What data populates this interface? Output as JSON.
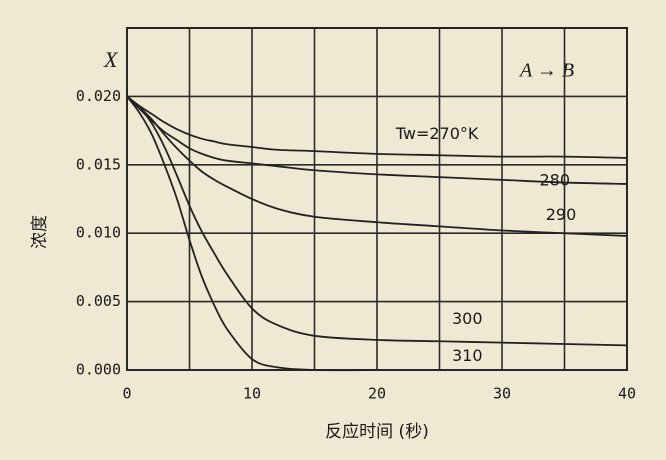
{
  "chart_data": {
    "type": "line",
    "y_axis_symbol": "X",
    "annotation": "A → B",
    "ylabel": "浓度",
    "xlabel": "反应时间 (秒)",
    "x": [
      0,
      1,
      2,
      3,
      4,
      5,
      6,
      7,
      8,
      10,
      12,
      15,
      20,
      25,
      30,
      35,
      40
    ],
    "series": [
      {
        "name": "Tw=270°K",
        "color": "#222222",
        "values": [
          0.02,
          0.0193,
          0.0187,
          0.0181,
          0.0176,
          0.0172,
          0.0169,
          0.0167,
          0.0165,
          0.0163,
          0.0161,
          0.016,
          0.0158,
          0.0157,
          0.0156,
          0.0156,
          0.0155
        ]
      },
      {
        "name": "280",
        "color": "#222222",
        "values": [
          0.02,
          0.0191,
          0.0182,
          0.0174,
          0.0168,
          0.0162,
          0.0158,
          0.0155,
          0.0153,
          0.0151,
          0.0149,
          0.0146,
          0.0143,
          0.0141,
          0.0139,
          0.0137,
          0.0136
        ]
      },
      {
        "name": "290",
        "color": "#222222",
        "values": [
          0.02,
          0.0192,
          0.0183,
          0.0172,
          0.0162,
          0.0153,
          0.0145,
          0.0139,
          0.0134,
          0.0125,
          0.0118,
          0.0112,
          0.0108,
          0.0105,
          0.0102,
          0.01,
          0.0098
        ]
      },
      {
        "name": "300",
        "color": "#222222",
        "values": [
          0.02,
          0.0192,
          0.018,
          0.0163,
          0.0142,
          0.012,
          0.0101,
          0.0085,
          0.007,
          0.0045,
          0.0033,
          0.0025,
          0.0022,
          0.0021,
          0.002,
          0.0019,
          0.0018
        ]
      },
      {
        "name": "310",
        "color": "#222222",
        "values": [
          0.02,
          0.0188,
          0.0172,
          0.015,
          0.0125,
          0.0095,
          0.0068,
          0.0047,
          0.003,
          0.0008,
          0.0002,
          0,
          0,
          null,
          null,
          null,
          null
        ]
      }
    ],
    "xlim": [
      0,
      40
    ],
    "xticks": [
      0,
      10,
      20,
      30,
      40
    ],
    "xminor_ticks": [
      5,
      15,
      25,
      35
    ],
    "ylim": [
      0,
      0.025
    ],
    "yticks": [
      {
        "value": 0,
        "label": "0.000"
      },
      {
        "value": 0.005,
        "label": "0.005"
      },
      {
        "value": 0.01,
        "label": "0.010"
      },
      {
        "value": 0.015,
        "label": "0.015"
      },
      {
        "value": 0.02,
        "label": "0.020"
      }
    ],
    "grid": true
  }
}
